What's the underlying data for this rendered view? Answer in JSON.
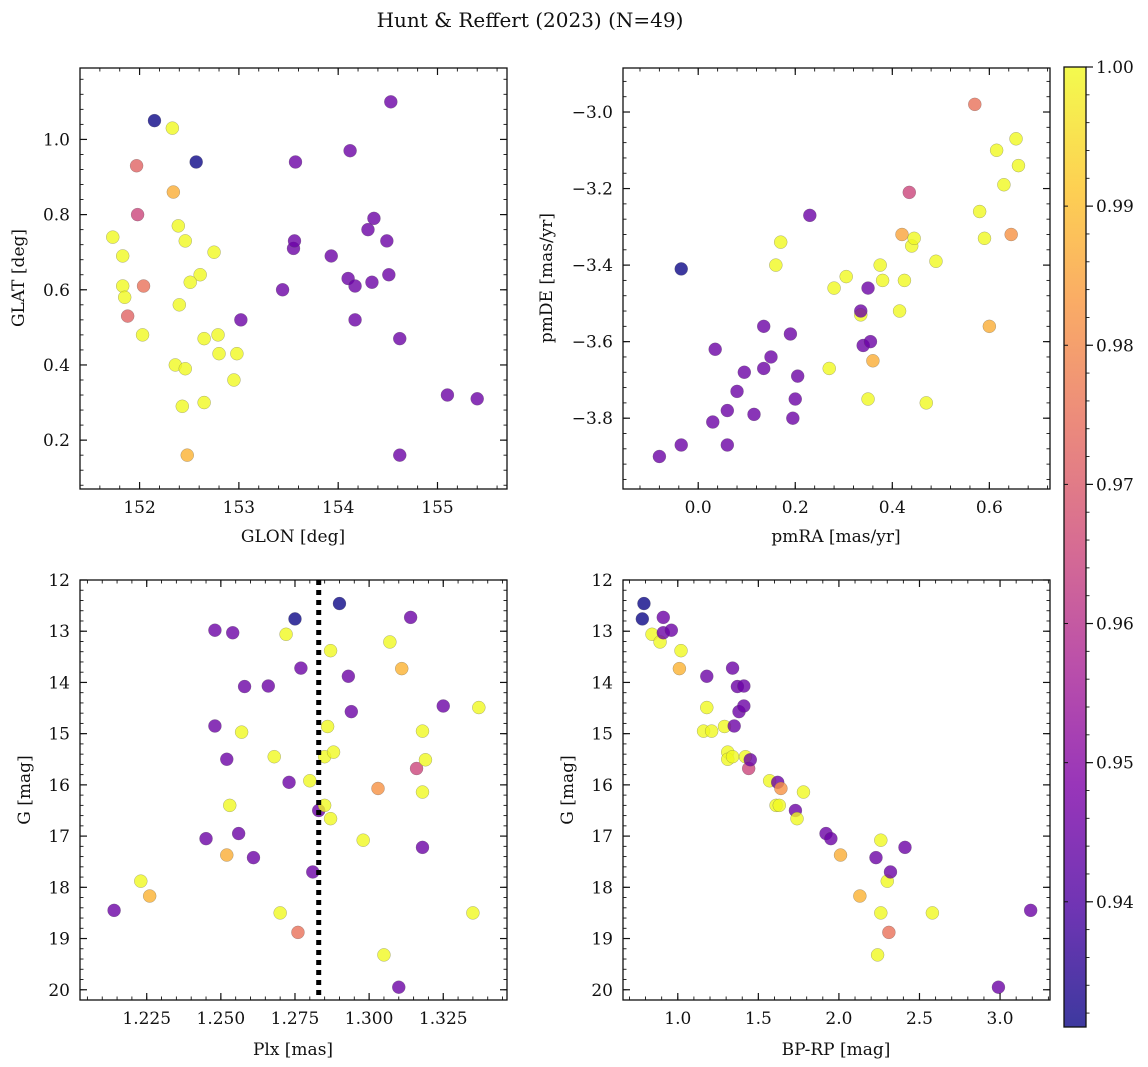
{
  "title": "Hunt & Reffert (2023) (N=49)",
  "colorbar": {
    "range": [
      0.931,
      1.0
    ],
    "ticks": [
      0.94,
      0.95,
      0.96,
      0.97,
      0.98,
      0.99,
      1.0
    ],
    "tick_labels": [
      "0.94",
      "0.95",
      "0.96",
      "0.97",
      "0.98",
      "0.99",
      "1.00"
    ],
    "colormap": "plasma"
  },
  "chart_data": [
    {
      "type": "scatter",
      "id": "glon_glat",
      "xlabel": "GLON [deg]",
      "ylabel": "GLAT [deg]",
      "xlim": [
        151.4,
        155.7
      ],
      "ylim": [
        0.07,
        1.19
      ],
      "y_inverted": false,
      "xticks": [
        152,
        153,
        154,
        155
      ],
      "xtick_labels": [
        "152",
        "153",
        "154",
        "155"
      ],
      "yticks": [
        0.2,
        0.4,
        0.6,
        0.8,
        1.0
      ],
      "ytick_labels": [
        "0.2",
        "0.4",
        "0.6",
        "0.8",
        "1.0"
      ],
      "points": [
        [
          152.15,
          1.05,
          0.931
        ],
        [
          152.33,
          1.03,
          1.0
        ],
        [
          152.57,
          0.94,
          0.931
        ],
        [
          151.97,
          0.93,
          0.972
        ],
        [
          152.34,
          0.86,
          0.987
        ],
        [
          151.98,
          0.8,
          0.965
        ],
        [
          151.73,
          0.74,
          1.0
        ],
        [
          152.39,
          0.77,
          1.0
        ],
        [
          152.46,
          0.73,
          1.0
        ],
        [
          151.83,
          0.69,
          1.0
        ],
        [
          152.75,
          0.7,
          1.0
        ],
        [
          152.61,
          0.64,
          1.0
        ],
        [
          152.51,
          0.62,
          1.0
        ],
        [
          151.83,
          0.61,
          1.0
        ],
        [
          152.04,
          0.61,
          0.975
        ],
        [
          151.85,
          0.58,
          1.0
        ],
        [
          152.4,
          0.56,
          1.0
        ],
        [
          151.88,
          0.53,
          0.972
        ],
        [
          152.03,
          0.48,
          1.0
        ],
        [
          152.65,
          0.47,
          1.0
        ],
        [
          152.79,
          0.48,
          1.0
        ],
        [
          152.8,
          0.43,
          1.0
        ],
        [
          152.98,
          0.43,
          1.0
        ],
        [
          152.36,
          0.4,
          1.0
        ],
        [
          152.46,
          0.39,
          1.0
        ],
        [
          152.95,
          0.36,
          1.0
        ],
        [
          152.65,
          0.3,
          1.0
        ],
        [
          152.43,
          0.29,
          1.0
        ],
        [
          152.48,
          0.16,
          0.988
        ],
        [
          153.02,
          0.52,
          0.945
        ],
        [
          153.44,
          0.6,
          0.945
        ],
        [
          153.55,
          0.71,
          0.945
        ],
        [
          153.56,
          0.73,
          0.945
        ],
        [
          153.57,
          0.94,
          0.945
        ],
        [
          153.93,
          0.69,
          0.945
        ],
        [
          154.12,
          0.97,
          0.945
        ],
        [
          154.1,
          0.63,
          0.945
        ],
        [
          154.17,
          0.61,
          0.945
        ],
        [
          154.17,
          0.52,
          0.945
        ],
        [
          154.3,
          0.76,
          0.945
        ],
        [
          154.34,
          0.62,
          0.945
        ],
        [
          154.36,
          0.79,
          0.945
        ],
        [
          154.49,
          0.73,
          0.945
        ],
        [
          154.51,
          0.64,
          0.945
        ],
        [
          154.53,
          1.1,
          0.945
        ],
        [
          154.62,
          0.47,
          0.945
        ],
        [
          154.62,
          0.16,
          0.945
        ],
        [
          155.1,
          0.32,
          0.945
        ],
        [
          155.4,
          0.31,
          0.945
        ]
      ]
    },
    {
      "type": "scatter",
      "id": "pmra_pmde",
      "xlabel": "pmRA [mas/yr]",
      "ylabel": "pmDE [mas/yr]",
      "xlim": [
        -0.155,
        0.725
      ],
      "ylim": [
        -3.985,
        -2.885
      ],
      "y_inverted": false,
      "xticks": [
        0.0,
        0.2,
        0.4,
        0.6
      ],
      "xtick_labels": [
        "0.0",
        "0.2",
        "0.4",
        "0.6"
      ],
      "yticks": [
        -3.8,
        -3.6,
        -3.4,
        -3.2,
        -3.0
      ],
      "ytick_labels": [
        "−3.8",
        "−3.6",
        "−3.4",
        "−3.2",
        "−3.0"
      ],
      "points": [
        [
          -0.08,
          -3.9,
          0.945
        ],
        [
          -0.035,
          -3.87,
          0.945
        ],
        [
          -0.035,
          -3.41,
          0.931
        ],
        [
          0.03,
          -3.81,
          0.945
        ],
        [
          0.035,
          -3.62,
          0.945
        ],
        [
          0.06,
          -3.87,
          0.945
        ],
        [
          0.06,
          -3.78,
          0.945
        ],
        [
          0.08,
          -3.73,
          0.945
        ],
        [
          0.095,
          -3.68,
          0.945
        ],
        [
          0.115,
          -3.79,
          0.945
        ],
        [
          0.135,
          -3.67,
          0.945
        ],
        [
          0.135,
          -3.56,
          0.945
        ],
        [
          0.15,
          -3.64,
          0.945
        ],
        [
          0.16,
          -3.4,
          1.0
        ],
        [
          0.17,
          -3.34,
          1.0
        ],
        [
          0.19,
          -3.58,
          0.945
        ],
        [
          0.195,
          -3.8,
          0.945
        ],
        [
          0.2,
          -3.75,
          0.945
        ],
        [
          0.205,
          -3.69,
          0.945
        ],
        [
          0.23,
          -3.27,
          0.945
        ],
        [
          0.27,
          -3.67,
          1.0
        ],
        [
          0.28,
          -3.46,
          1.0
        ],
        [
          0.305,
          -3.43,
          1.0
        ],
        [
          0.335,
          -3.53,
          1.0
        ],
        [
          0.335,
          -3.52,
          0.945
        ],
        [
          0.34,
          -3.61,
          0.945
        ],
        [
          0.35,
          -3.46,
          0.945
        ],
        [
          0.35,
          -3.75,
          1.0
        ],
        [
          0.355,
          -3.6,
          0.945
        ],
        [
          0.36,
          -3.65,
          0.987
        ],
        [
          0.375,
          -3.4,
          1.0
        ],
        [
          0.38,
          -3.44,
          1.0
        ],
        [
          0.42,
          -3.32,
          0.985
        ],
        [
          0.415,
          -3.52,
          1.0
        ],
        [
          0.425,
          -3.44,
          1.0
        ],
        [
          0.435,
          -3.21,
          0.965
        ],
        [
          0.44,
          -3.35,
          1.0
        ],
        [
          0.445,
          -3.33,
          1.0
        ],
        [
          0.47,
          -3.76,
          1.0
        ],
        [
          0.49,
          -3.39,
          1.0
        ],
        [
          0.57,
          -2.98,
          0.975
        ],
        [
          0.58,
          -3.26,
          1.0
        ],
        [
          0.59,
          -3.33,
          1.0
        ],
        [
          0.6,
          -3.56,
          0.987
        ],
        [
          0.615,
          -3.1,
          1.0
        ],
        [
          0.63,
          -3.19,
          1.0
        ],
        [
          0.645,
          -3.32,
          0.982
        ],
        [
          0.655,
          -3.07,
          1.0
        ],
        [
          0.66,
          -3.14,
          1.0
        ]
      ]
    },
    {
      "type": "scatter",
      "id": "plx_g",
      "xlabel": "Plx [mas]",
      "ylabel": "G [mag]",
      "xlim": [
        1.2025,
        1.3465
      ],
      "ylim": [
        12.0,
        20.2
      ],
      "y_inverted": true,
      "vline": 1.283,
      "xticks": [
        1.225,
        1.25,
        1.275,
        1.3,
        1.325
      ],
      "xtick_labels": [
        "1.225",
        "1.250",
        "1.275",
        "1.300",
        "1.325"
      ],
      "yticks": [
        12,
        13,
        14,
        15,
        16,
        17,
        18,
        19,
        20
      ],
      "ytick_labels": [
        "12",
        "13",
        "14",
        "15",
        "16",
        "17",
        "18",
        "19",
        "20"
      ],
      "points": [
        [
          1.214,
          18.45,
          0.945
        ],
        [
          1.223,
          17.88,
          1.0
        ],
        [
          1.226,
          18.17,
          0.988
        ],
        [
          1.245,
          17.05,
          0.945
        ],
        [
          1.248,
          12.98,
          0.945
        ],
        [
          1.248,
          14.85,
          0.945
        ],
        [
          1.252,
          15.5,
          0.945
        ],
        [
          1.252,
          17.37,
          0.987
        ],
        [
          1.253,
          16.4,
          1.0
        ],
        [
          1.254,
          13.03,
          0.945
        ],
        [
          1.256,
          16.95,
          0.945
        ],
        [
          1.257,
          14.97,
          1.0
        ],
        [
          1.258,
          14.08,
          0.945
        ],
        [
          1.261,
          17.42,
          0.945
        ],
        [
          1.266,
          14.07,
          0.945
        ],
        [
          1.268,
          15.45,
          1.0
        ],
        [
          1.27,
          18.5,
          1.0
        ],
        [
          1.272,
          13.06,
          1.0
        ],
        [
          1.273,
          15.95,
          0.945
        ],
        [
          1.275,
          12.76,
          0.931
        ],
        [
          1.276,
          18.88,
          0.975
        ],
        [
          1.277,
          13.72,
          0.945
        ],
        [
          1.28,
          15.92,
          1.0
        ],
        [
          1.281,
          17.7,
          0.945
        ],
        [
          1.283,
          16.5,
          0.945
        ],
        [
          1.285,
          16.4,
          1.0
        ],
        [
          1.285,
          15.45,
          1.0
        ],
        [
          1.286,
          14.86,
          1.0
        ],
        [
          1.287,
          16.66,
          1.0
        ],
        [
          1.287,
          13.38,
          1.0
        ],
        [
          1.288,
          15.36,
          1.0
        ],
        [
          1.29,
          12.46,
          0.931
        ],
        [
          1.293,
          13.88,
          0.945
        ],
        [
          1.294,
          14.57,
          0.945
        ],
        [
          1.298,
          17.08,
          1.0
        ],
        [
          1.303,
          16.07,
          0.982
        ],
        [
          1.305,
          19.32,
          1.0
        ],
        [
          1.307,
          13.21,
          1.0
        ],
        [
          1.31,
          19.95,
          0.945
        ],
        [
          1.311,
          13.73,
          0.988
        ],
        [
          1.314,
          12.73,
          0.945
        ],
        [
          1.316,
          15.68,
          0.965
        ],
        [
          1.318,
          14.95,
          1.0
        ],
        [
          1.318,
          16.14,
          1.0
        ],
        [
          1.318,
          17.22,
          0.945
        ],
        [
          1.319,
          15.51,
          1.0
        ],
        [
          1.325,
          14.46,
          0.945
        ],
        [
          1.335,
          18.5,
          1.0
        ],
        [
          1.337,
          14.49,
          1.0
        ]
      ]
    },
    {
      "type": "scatter",
      "id": "bprp_g",
      "xlabel": "BP-RP [mag]",
      "ylabel": "G [mag]",
      "xlim": [
        0.66,
        3.31
      ],
      "ylim": [
        12.0,
        20.2
      ],
      "y_inverted": true,
      "xticks": [
        1.0,
        1.5,
        2.0,
        2.5,
        3.0
      ],
      "xtick_labels": [
        "1.0",
        "1.5",
        "2.0",
        "2.5",
        "3.0"
      ],
      "yticks": [
        12,
        13,
        14,
        15,
        16,
        17,
        18,
        19,
        20
      ],
      "ytick_labels": [
        "12",
        "13",
        "14",
        "15",
        "16",
        "17",
        "18",
        "19",
        "20"
      ],
      "points": [
        [
          0.79,
          12.46,
          0.931
        ],
        [
          0.78,
          12.76,
          0.931
        ],
        [
          0.84,
          13.06,
          1.0
        ],
        [
          0.89,
          13.21,
          1.0
        ],
        [
          0.91,
          12.73,
          0.945
        ],
        [
          0.91,
          13.03,
          0.945
        ],
        [
          0.96,
          12.98,
          0.945
        ],
        [
          1.02,
          13.38,
          1.0
        ],
        [
          1.01,
          13.73,
          0.988
        ],
        [
          1.16,
          14.95,
          1.0
        ],
        [
          1.18,
          13.88,
          0.945
        ],
        [
          1.18,
          14.49,
          1.0
        ],
        [
          1.21,
          14.95,
          1.0
        ],
        [
          1.29,
          14.86,
          1.0
        ],
        [
          1.31,
          15.36,
          1.0
        ],
        [
          1.31,
          15.5,
          1.0
        ],
        [
          1.34,
          15.45,
          1.0
        ],
        [
          1.34,
          13.72,
          0.945
        ],
        [
          1.35,
          14.85,
          0.945
        ],
        [
          1.37,
          14.08,
          0.945
        ],
        [
          1.38,
          14.57,
          0.945
        ],
        [
          1.41,
          14.07,
          0.945
        ],
        [
          1.41,
          14.46,
          0.945
        ],
        [
          1.42,
          15.45,
          1.0
        ],
        [
          1.44,
          15.68,
          0.965
        ],
        [
          1.45,
          15.51,
          0.945
        ],
        [
          1.57,
          15.92,
          1.0
        ],
        [
          1.61,
          16.4,
          1.0
        ],
        [
          1.62,
          15.95,
          0.945
        ],
        [
          1.63,
          16.4,
          1.0
        ],
        [
          1.64,
          16.07,
          0.982
        ],
        [
          1.73,
          16.5,
          0.945
        ],
        [
          1.74,
          16.66,
          1.0
        ],
        [
          1.78,
          16.14,
          1.0
        ],
        [
          1.92,
          16.95,
          0.945
        ],
        [
          1.95,
          17.05,
          0.945
        ],
        [
          2.01,
          17.37,
          0.987
        ],
        [
          2.13,
          18.17,
          0.988
        ],
        [
          2.23,
          17.42,
          0.945
        ],
        [
          2.24,
          19.32,
          1.0
        ],
        [
          2.26,
          18.5,
          1.0
        ],
        [
          2.26,
          17.08,
          1.0
        ],
        [
          2.3,
          17.88,
          1.0
        ],
        [
          2.31,
          18.88,
          0.975
        ],
        [
          2.32,
          17.7,
          0.945
        ],
        [
          2.41,
          17.22,
          0.945
        ],
        [
          2.58,
          18.5,
          1.0
        ],
        [
          2.99,
          19.95,
          0.945
        ],
        [
          3.19,
          18.45,
          0.945
        ]
      ]
    }
  ]
}
